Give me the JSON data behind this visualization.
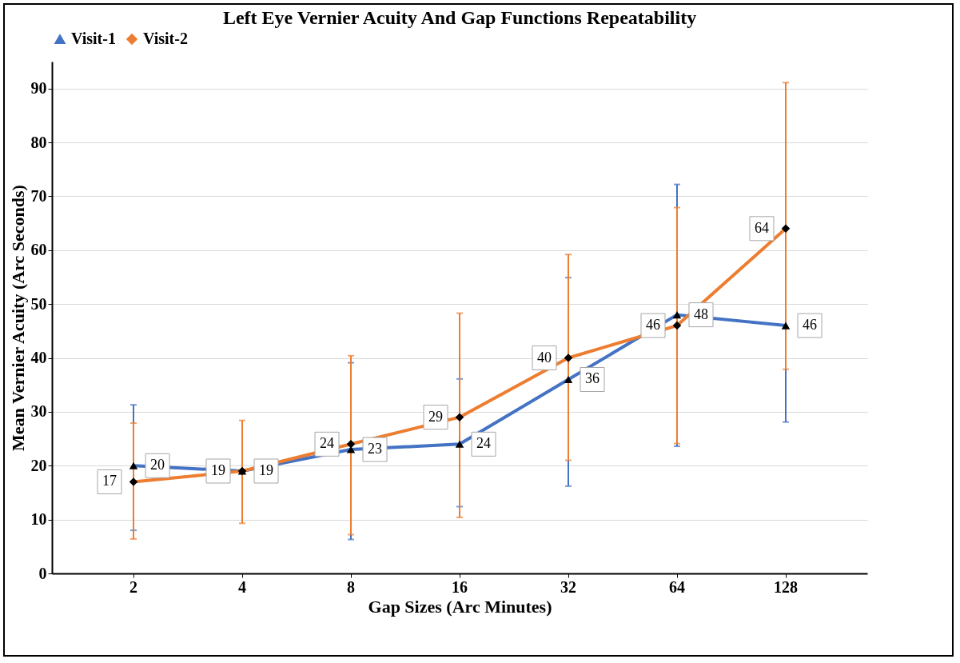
{
  "chart_data": {
    "type": "line",
    "title": "Left Eye Vernier Acuity And Gap Functions Repeatability",
    "xlabel": "Gap Sizes (Arc Minutes)",
    "ylabel": "Mean Vernier Acuity (Arc Seconds)",
    "categories": [
      "2",
      "4",
      "8",
      "16",
      "32",
      "64",
      "128"
    ],
    "series": [
      {
        "name": "Visit-1",
        "color": "#4472c4",
        "marker": "triangle",
        "values": [
          20,
          19,
          23,
          24,
          36,
          48,
          46
        ],
        "errors": [
          [
            8.0,
            31.3
          ],
          null,
          [
            6.3,
            39.1
          ],
          [
            12.4,
            36.1
          ],
          [
            16.2,
            54.9
          ],
          [
            23.6,
            72.2
          ],
          [
            28.1,
            64.1
          ]
        ]
      },
      {
        "name": "Visit-2",
        "color": "#ed7d31",
        "marker": "diamond",
        "values": [
          17,
          19,
          24,
          29,
          40,
          46,
          64
        ],
        "errors": [
          [
            6.4,
            27.9
          ],
          [
            9.3,
            28.4
          ],
          [
            7.2,
            40.4
          ],
          [
            10.4,
            48.3
          ],
          [
            21.0,
            59.2
          ],
          [
            24.1,
            67.9
          ],
          [
            37.9,
            91.1
          ]
        ]
      }
    ],
    "ylim": [
      0,
      95
    ],
    "yticks": [
      0,
      10,
      20,
      30,
      40,
      50,
      60,
      70,
      80,
      90
    ],
    "grid": "y",
    "legend": "top",
    "data_labels": true,
    "line_style": "solid"
  }
}
